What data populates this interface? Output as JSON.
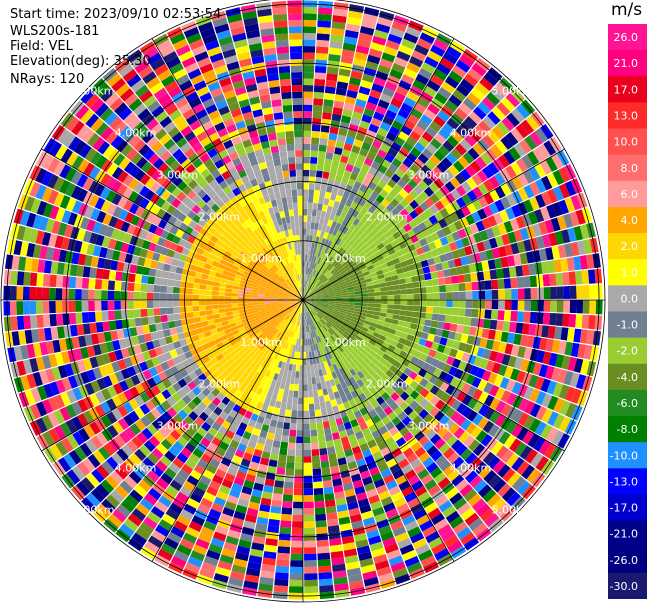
{
  "header": {
    "start_time": "Start time: 2023/09/10 02:53:54",
    "instrument": "WLS200s-181",
    "field": "Field: VEL",
    "elevation": "Elevation(deg): 35.30",
    "nrays": "NRays: 120"
  },
  "chart_data": {
    "type": "heatmap",
    "subtype": "polar-ppi",
    "nrays": 120,
    "range_rings_km": [
      1.0,
      2.0,
      3.0,
      4.0,
      5.0
    ],
    "ring_label": "km",
    "ring_label_text": [
      "1.00km",
      "2.00km",
      "3.00km",
      "4.00km",
      "5.00km"
    ],
    "max_range_km": 5.1,
    "colorbar": {
      "unit": "m/s",
      "labels": [
        "26.0",
        "21.0",
        "17.0",
        "13.0",
        "10.0",
        "8.0",
        "6.0",
        "4.0",
        "2.0",
        "1.0",
        "0.0",
        "-1.0",
        "-2.0",
        "-4.0",
        "-6.0",
        "-8.0",
        "-10.0",
        "-13.0",
        "-17.0",
        "-21.0",
        "-26.0",
        "-30.0"
      ],
      "colors": [
        "#ff1493",
        "#ff007f",
        "#e8001c",
        "#ff2b2b",
        "#ff5050",
        "#ff6e6e",
        "#ff9b9b",
        "#ffa500",
        "#ffd700",
        "#ffff00",
        "#a9a9a9",
        "#708090",
        "#9acd32",
        "#6b8e23",
        "#228b22",
        "#008000",
        "#1e90ff",
        "#0000ff",
        "#0000cd",
        "#00008b",
        "#000080",
        "#191970"
      ]
    },
    "structure": {
      "near_field": "north half negative (green, -2 to -6 m/s), south half positive (yellow/orange, 2 to 6 m/s)",
      "mid_field": "grey / olive (-1 to 1 m/s)",
      "far_field": "noisy multicolor beyond ~2.5 km"
    }
  }
}
